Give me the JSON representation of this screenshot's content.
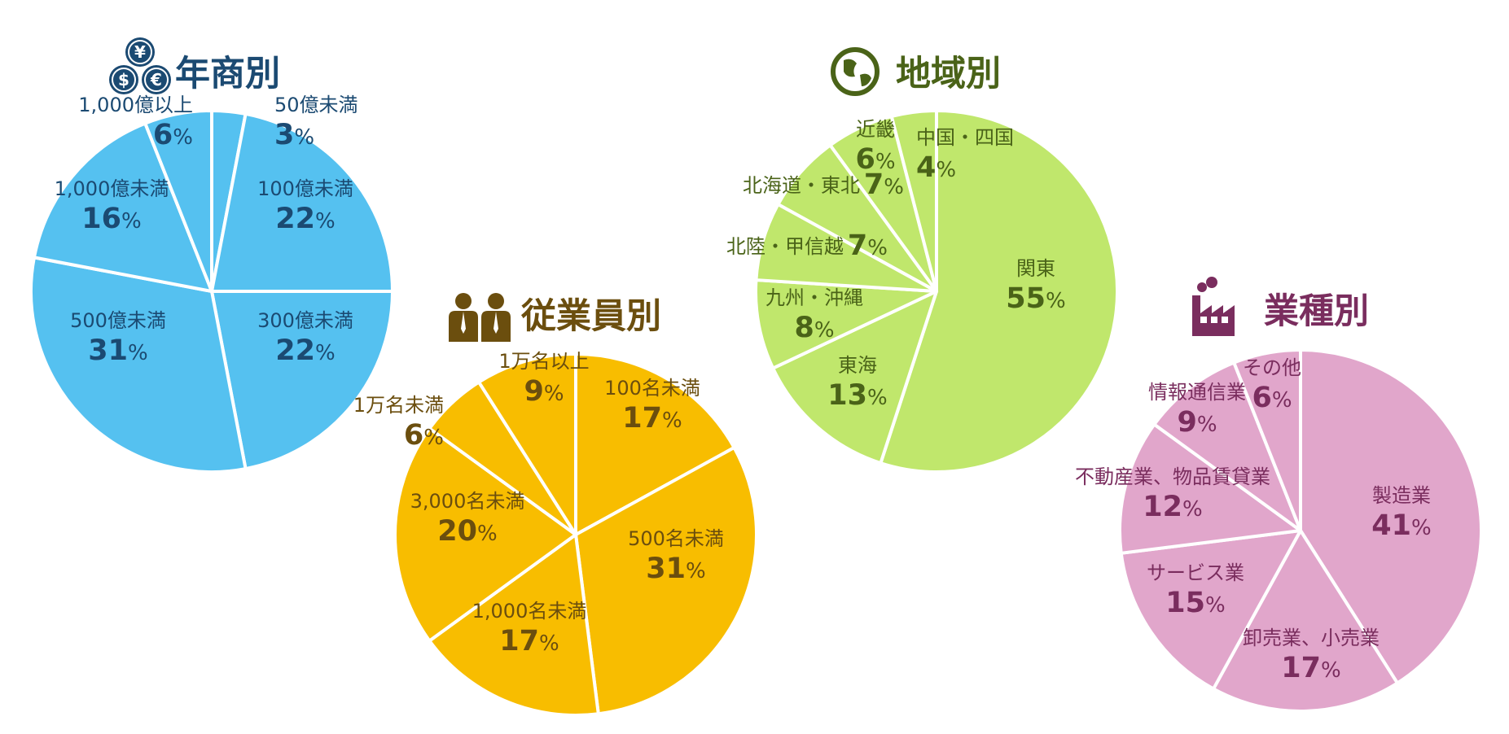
{
  "chart_data": [
    {
      "type": "pie",
      "title": "年商別",
      "icon": "currency-coins-icon",
      "colors": {
        "fill": "#55C1F0",
        "text": "#1B4A72"
      },
      "series": [
        {
          "name": "50億未満",
          "value": 3
        },
        {
          "name": "100億未満",
          "value": 22
        },
        {
          "name": "300億未満",
          "value": 22
        },
        {
          "name": "500億未満",
          "value": 31
        },
        {
          "name": "1,000億未満",
          "value": 16
        },
        {
          "name": "1,000億以上",
          "value": 6
        }
      ]
    },
    {
      "type": "pie",
      "title": "従業員別",
      "icon": "employees-icon",
      "colors": {
        "fill": "#F8BD00",
        "text": "#6B4E0E"
      },
      "series": [
        {
          "name": "100名未満",
          "value": 17
        },
        {
          "name": "500名未満",
          "value": 31
        },
        {
          "name": "1,000名未満",
          "value": 17
        },
        {
          "name": "3,000名未満",
          "value": 20
        },
        {
          "name": "1万名未満",
          "value": 6
        },
        {
          "name": "1万名以上",
          "value": 9
        }
      ]
    },
    {
      "type": "pie",
      "title": "地域別",
      "icon": "globe-icon",
      "colors": {
        "fill": "#C0E76C",
        "text": "#4A6318"
      },
      "series": [
        {
          "name": "関東",
          "value": 55
        },
        {
          "name": "東海",
          "value": 13
        },
        {
          "name": "九州・沖縄",
          "value": 8
        },
        {
          "name": "北陸・甲信越",
          "value": 7
        },
        {
          "name": "北海道・東北",
          "value": 7
        },
        {
          "name": "近畿",
          "value": 6
        },
        {
          "name": "中国・四国",
          "value": 4
        }
      ]
    },
    {
      "type": "pie",
      "title": "業種別",
      "icon": "factory-icon",
      "colors": {
        "fill": "#E1A6CB",
        "text": "#7A2D5E"
      },
      "series": [
        {
          "name": "製造業",
          "value": 41
        },
        {
          "name": "卸売業、小売業",
          "value": 17
        },
        {
          "name": "サービス業",
          "value": 15
        },
        {
          "name": "不動産業、物品賃貸業",
          "value": 12
        },
        {
          "name": "情報通信業",
          "value": 9
        },
        {
          "name": "その他",
          "value": 6
        }
      ]
    }
  ],
  "percent_sign": "%"
}
